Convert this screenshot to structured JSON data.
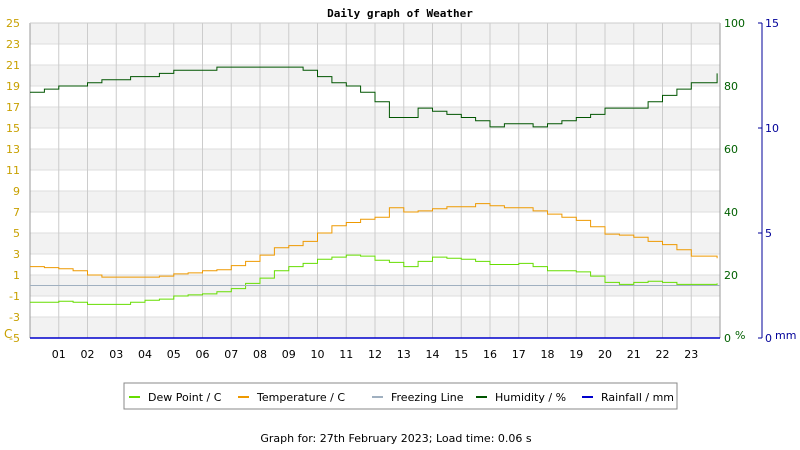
{
  "chart_data": {
    "type": "line",
    "title": "Daily graph of Weather",
    "footer": "Graph for: 27th February 2023; Load time: 0.06 s",
    "x_ticks": [
      "01",
      "02",
      "03",
      "04",
      "05",
      "06",
      "07",
      "08",
      "09",
      "10",
      "11",
      "12",
      "13",
      "14",
      "15",
      "16",
      "17",
      "18",
      "19",
      "20",
      "21",
      "22",
      "23"
    ],
    "xlim": [
      0,
      24
    ],
    "left_axis": {
      "unit": "C",
      "ylim": [
        -5,
        25
      ],
      "ticks": [
        25,
        23,
        21,
        19,
        17,
        15,
        13,
        11,
        9,
        7,
        5,
        3,
        1,
        -1,
        -3,
        -5
      ],
      "color": "#c8a000"
    },
    "right_axis_humidity": {
      "unit": "%",
      "ylim": [
        0,
        100
      ],
      "ticks": [
        100,
        80,
        60,
        40,
        20,
        0
      ],
      "color": "#006000"
    },
    "right_axis_rain": {
      "unit": "mm",
      "ylim": [
        0,
        15
      ],
      "ticks": [
        15,
        10,
        5,
        0
      ],
      "color": "#000099"
    },
    "series": [
      {
        "name": "Dew Point / C",
        "axis": "left",
        "color": "#66dd00",
        "x": [
          0,
          0.5,
          1,
          1.5,
          2,
          2.5,
          3,
          3.5,
          4,
          4.5,
          5,
          5.5,
          6,
          6.5,
          7,
          7.5,
          8,
          8.5,
          9,
          9.5,
          10,
          10.5,
          11,
          11.5,
          12,
          12.5,
          13,
          13.5,
          14,
          14.5,
          15,
          15.5,
          16,
          16.5,
          17,
          17.5,
          18,
          18.5,
          19,
          19.5,
          20,
          20.5,
          21,
          21.5,
          22,
          22.5,
          23,
          23.9
        ],
        "values": [
          -1.6,
          -1.6,
          -1.5,
          -1.6,
          -1.8,
          -1.8,
          -1.8,
          -1.6,
          -1.4,
          -1.3,
          -1.0,
          -0.9,
          -0.8,
          -0.6,
          -0.3,
          0.2,
          0.7,
          1.4,
          1.8,
          2.1,
          2.5,
          2.7,
          2.9,
          2.8,
          2.4,
          2.2,
          1.8,
          2.3,
          2.7,
          2.6,
          2.5,
          2.3,
          2.0,
          2.0,
          2.1,
          1.8,
          1.4,
          1.4,
          1.3,
          0.9,
          0.3,
          0.1,
          0.3,
          0.4,
          0.3,
          0.1,
          0.1,
          0.2
        ]
      },
      {
        "name": "Temperature / C",
        "axis": "left",
        "color": "#ee9900",
        "x": [
          0,
          0.5,
          1,
          1.5,
          2,
          2.5,
          3,
          3.5,
          4,
          4.5,
          5,
          5.5,
          6,
          6.5,
          7,
          7.5,
          8,
          8.5,
          9,
          9.5,
          10,
          10.5,
          11,
          11.5,
          12,
          12.5,
          13,
          13.5,
          14,
          14.5,
          15,
          15.5,
          16,
          16.5,
          17,
          17.5,
          18,
          18.5,
          19,
          19.5,
          20,
          20.5,
          21,
          21.5,
          22,
          22.5,
          23,
          23.9
        ],
        "values": [
          1.8,
          1.7,
          1.6,
          1.4,
          1.0,
          0.8,
          0.8,
          0.8,
          0.8,
          0.9,
          1.1,
          1.2,
          1.4,
          1.5,
          1.9,
          2.3,
          2.9,
          3.6,
          3.8,
          4.2,
          5.0,
          5.7,
          6.0,
          6.3,
          6.5,
          7.4,
          7.0,
          7.1,
          7.3,
          7.5,
          7.5,
          7.8,
          7.6,
          7.4,
          7.4,
          7.1,
          6.8,
          6.5,
          6.2,
          5.6,
          4.9,
          4.8,
          4.6,
          4.2,
          3.9,
          3.4,
          2.8,
          2.6
        ]
      },
      {
        "name": "Freezing Line",
        "axis": "left",
        "color": "#a0b0c0",
        "x": [
          0,
          24
        ],
        "values": [
          0,
          0
        ]
      },
      {
        "name": "Humidity / %",
        "axis": "right",
        "color": "#005500",
        "x": [
          0,
          0.5,
          1,
          1.5,
          2,
          2.5,
          3,
          3.5,
          4,
          4.5,
          5,
          5.5,
          6,
          6.5,
          7,
          7.5,
          8,
          8.5,
          9,
          9.5,
          10,
          10.5,
          11,
          11.5,
          12,
          12.5,
          13,
          13.5,
          14,
          14.5,
          15,
          15.5,
          16,
          16.5,
          17,
          17.5,
          18,
          18.5,
          19,
          19.5,
          20,
          20.5,
          21,
          21.5,
          22,
          22.5,
          23,
          23.9
        ],
        "values": [
          78,
          79,
          80,
          80,
          81,
          82,
          82,
          83,
          83,
          84,
          85,
          85,
          85,
          86,
          86,
          86,
          86,
          86,
          86,
          85,
          83,
          81,
          80,
          78,
          75,
          70,
          70,
          73,
          72,
          71,
          70,
          69,
          67,
          68,
          68,
          67,
          68,
          69,
          70,
          71,
          73,
          73,
          73,
          75,
          77,
          79,
          81,
          84
        ]
      },
      {
        "name": "Rainfall / mm",
        "axis": "rain",
        "color": "#0000cc",
        "x": [
          0,
          24
        ],
        "values": [
          0,
          0
        ]
      }
    ],
    "legend_placement": "bottom-center"
  }
}
